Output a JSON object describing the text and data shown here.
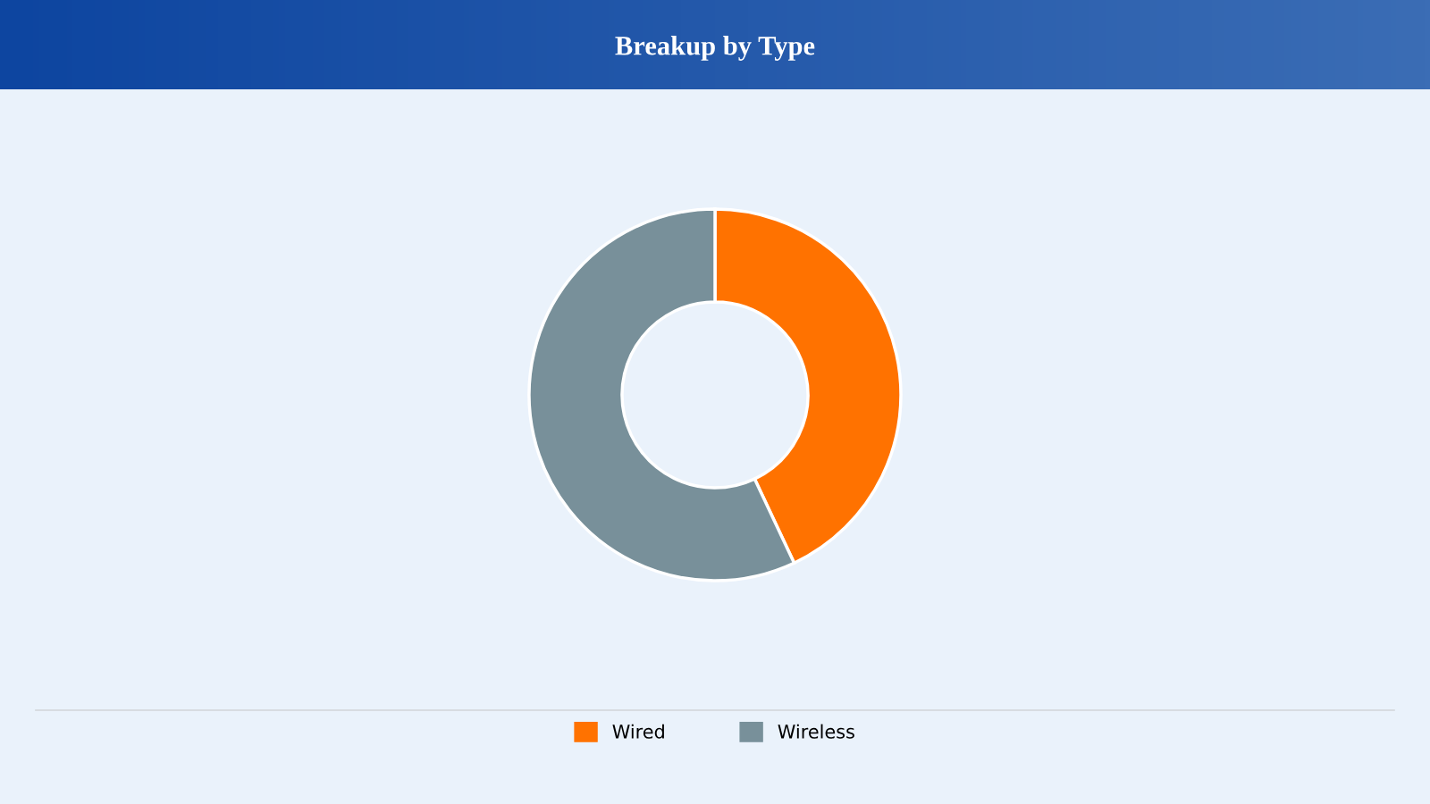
{
  "chart_data": {
    "type": "donut",
    "title": "Breakup by Type",
    "categories": [
      "Wired",
      "Wireless"
    ],
    "values": [
      43,
      57
    ],
    "colors": [
      "#ff7200",
      "#78909a"
    ],
    "legend": "bottom"
  }
}
